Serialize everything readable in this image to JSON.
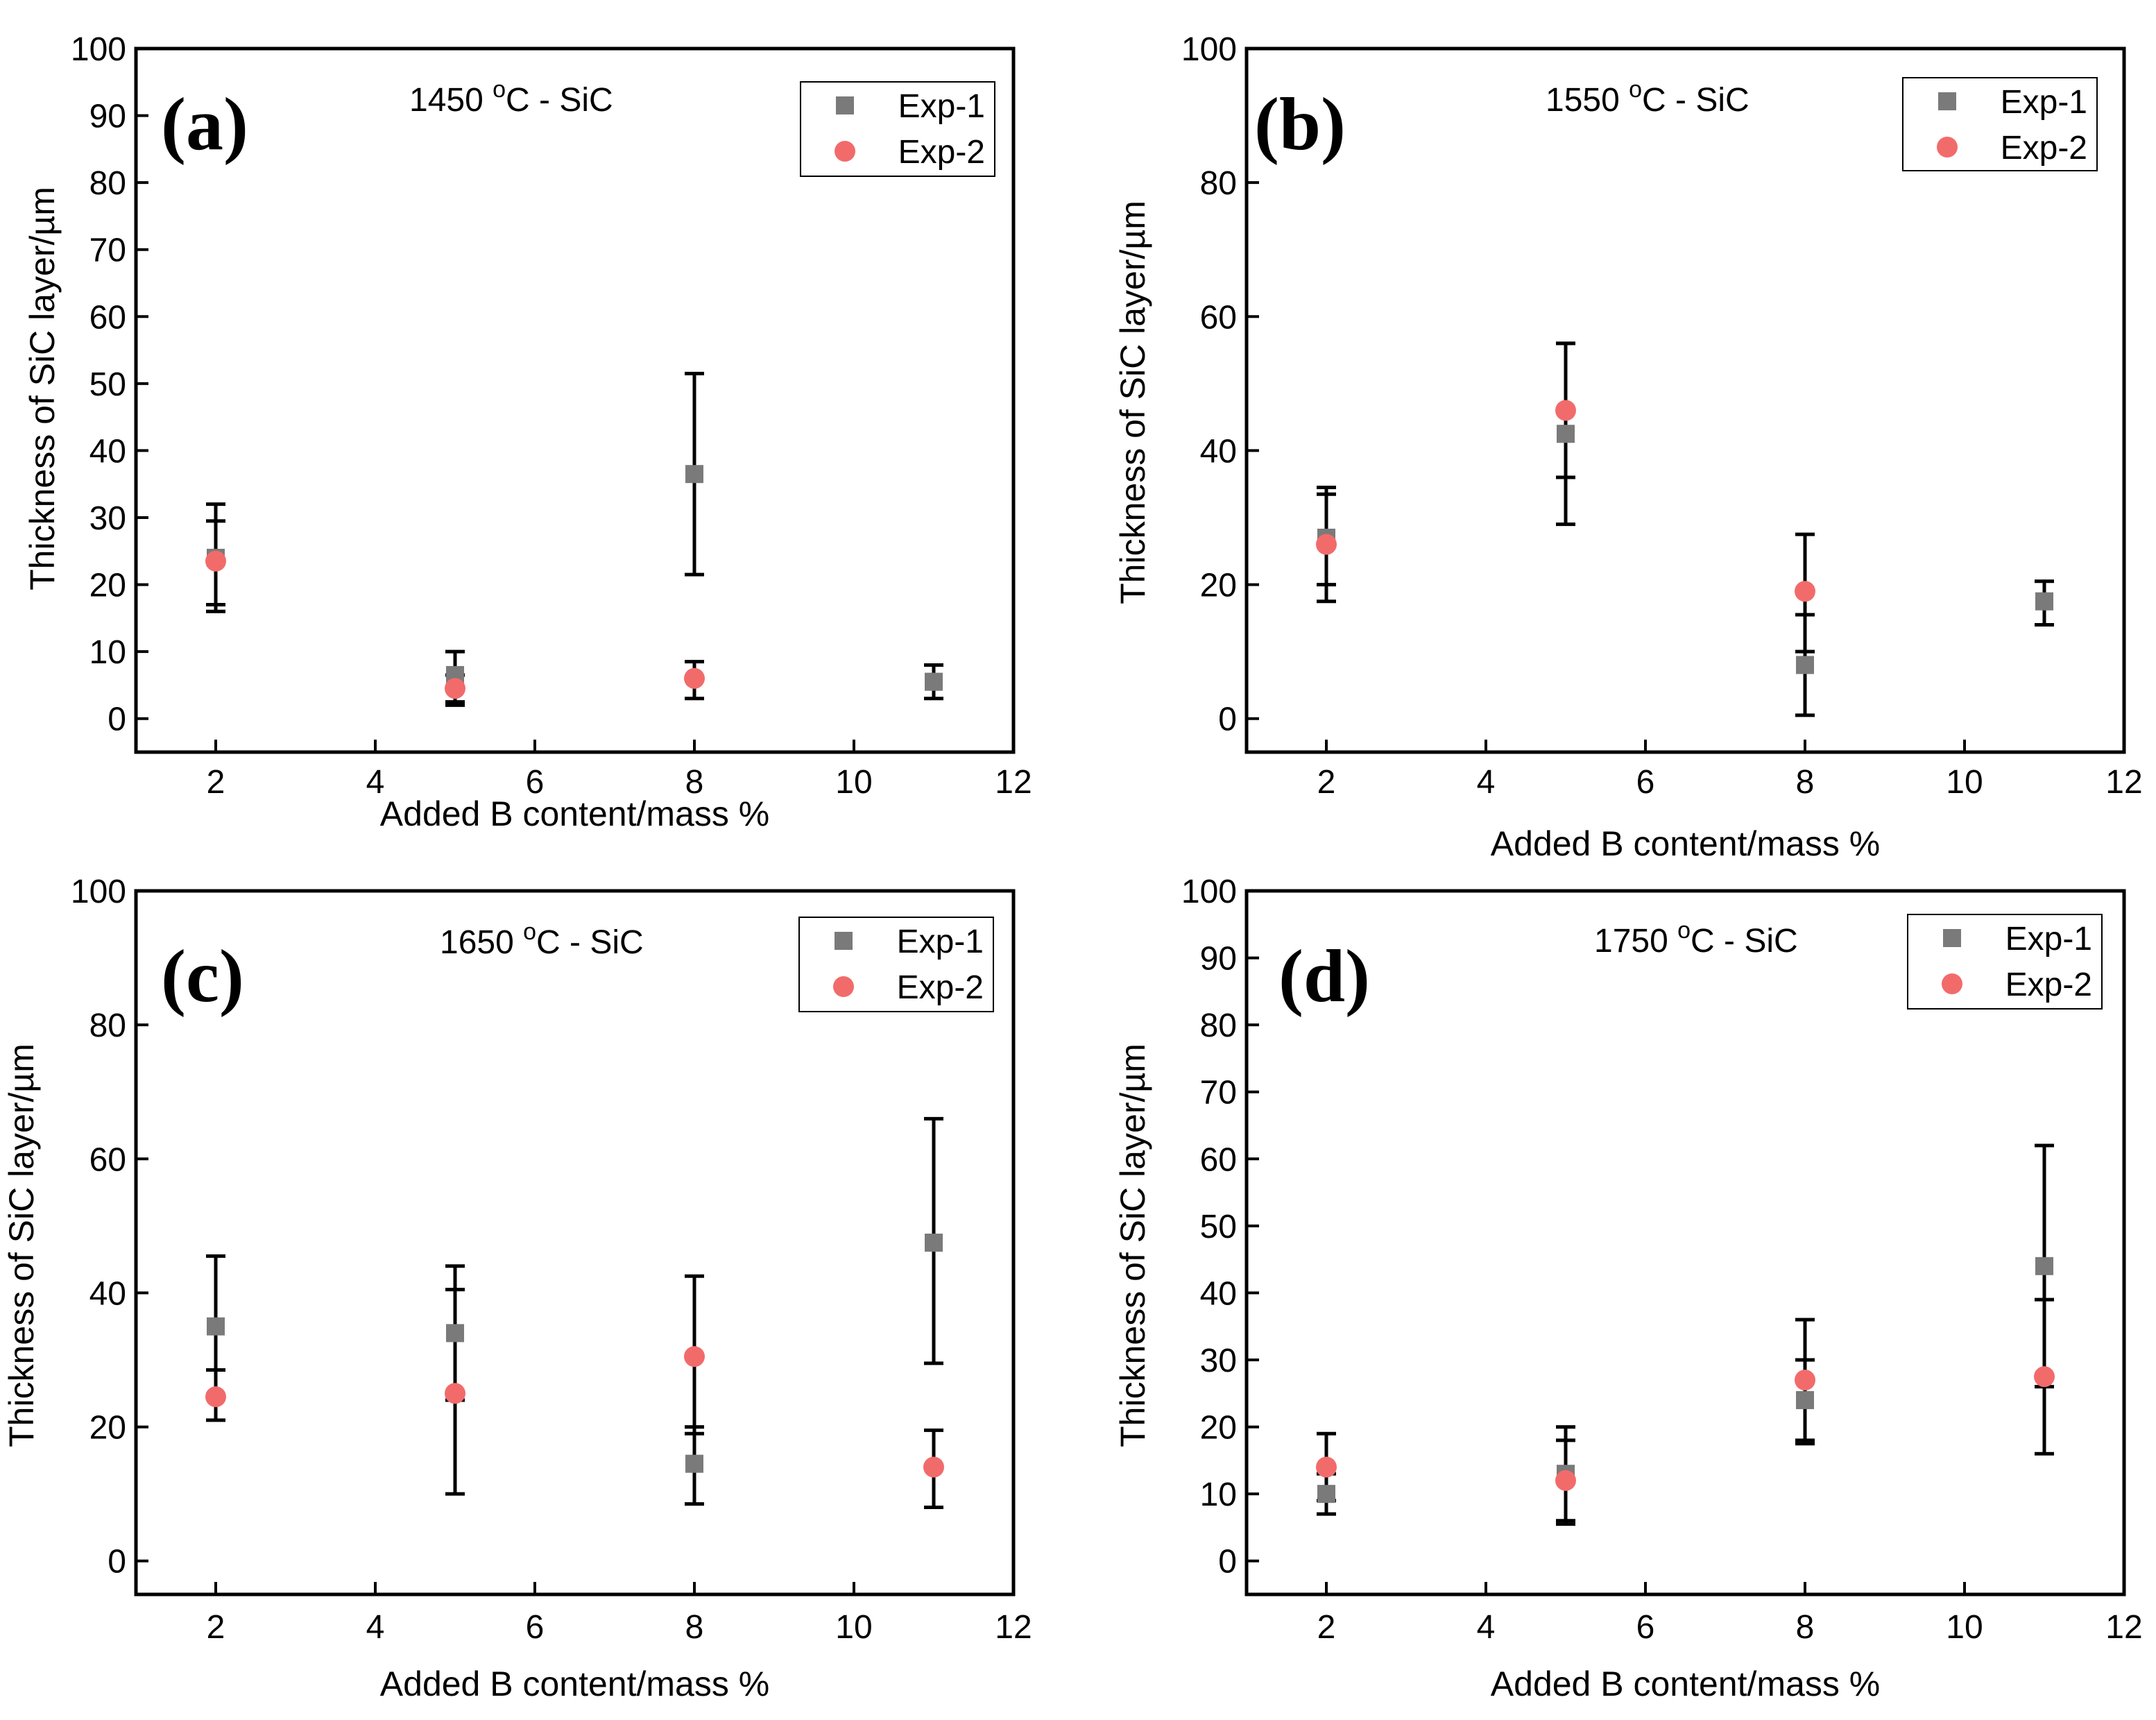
{
  "figure": {
    "series_colors": {
      "Exp-1": "#7a7a7a",
      "Exp-2": "#f26b6b"
    },
    "error_bar_color": "#000000"
  },
  "chart_data": [
    {
      "type": "scatter",
      "panel_label": "(a)",
      "annotation": {
        "temp": "1450",
        "sup": "o",
        "rest": "C - SiC"
      },
      "xlabel": "Added B content/mass %",
      "ylabel": "Thickness of SiC layer/µm",
      "xlim": [
        1,
        12
      ],
      "ylim": [
        -5,
        100
      ],
      "xticks": [
        2,
        4,
        6,
        8,
        10,
        12
      ],
      "yticks": [
        0,
        10,
        20,
        30,
        40,
        50,
        60,
        70,
        80,
        90,
        100
      ],
      "legend_position": "top-right",
      "series": [
        {
          "name": "Exp-1",
          "marker": "square",
          "points": [
            {
              "x": 2,
              "y": 24,
              "lo": 16,
              "hi": 32
            },
            {
              "x": 5,
              "y": 6.5,
              "lo": 2.5,
              "hi": 10
            },
            {
              "x": 8,
              "y": 36.5,
              "lo": 21.5,
              "hi": 51.5
            },
            {
              "x": 11,
              "y": 5.5,
              "lo": 3,
              "hi": 8
            }
          ]
        },
        {
          "name": "Exp-2",
          "marker": "circle",
          "points": [
            {
              "x": 2,
              "y": 23.5,
              "lo": 17,
              "hi": 29.5
            },
            {
              "x": 5,
              "y": 4.5,
              "lo": 2,
              "hi": 6.5
            },
            {
              "x": 8,
              "y": 6,
              "lo": 3,
              "hi": 8.5
            }
          ]
        }
      ]
    },
    {
      "type": "scatter",
      "panel_label": "(b)",
      "annotation": {
        "temp": "1550",
        "sup": "o",
        "rest": "C - SiC"
      },
      "xlabel": "Added B content/mass %",
      "ylabel": "Thickness of SiC layer/µm",
      "xlim": [
        1,
        12
      ],
      "ylim": [
        -5,
        100
      ],
      "xticks": [
        2,
        4,
        6,
        8,
        10,
        12
      ],
      "yticks": [
        0,
        20,
        40,
        60,
        80,
        100
      ],
      "legend_position": "top-right",
      "series": [
        {
          "name": "Exp-1",
          "marker": "square",
          "points": [
            {
              "x": 2,
              "y": 27,
              "lo": 20,
              "hi": 34.5
            },
            {
              "x": 5,
              "y": 42.5,
              "lo": 29,
              "hi": 56
            },
            {
              "x": 8,
              "y": 8,
              "lo": 0.5,
              "hi": 15.5
            },
            {
              "x": 11,
              "y": 17.5,
              "lo": 14,
              "hi": 20.5
            }
          ]
        },
        {
          "name": "Exp-2",
          "marker": "circle",
          "points": [
            {
              "x": 2,
              "y": 26,
              "lo": 17.5,
              "hi": 33.5
            },
            {
              "x": 5,
              "y": 46,
              "lo": 36,
              "hi": 56
            },
            {
              "x": 8,
              "y": 19,
              "lo": 10,
              "hi": 27.5
            }
          ]
        }
      ]
    },
    {
      "type": "scatter",
      "panel_label": "(c)",
      "annotation": {
        "temp": "1650",
        "sup": "o",
        "rest": "C - SiC"
      },
      "xlabel": "Added B content/mass %",
      "ylabel": "Thickness of SiC layer/µm",
      "xlim": [
        1,
        12
      ],
      "ylim": [
        -5,
        100
      ],
      "xticks": [
        2,
        4,
        6,
        8,
        10,
        12
      ],
      "yticks": [
        0,
        20,
        40,
        60,
        80,
        100
      ],
      "legend_position": "top-right",
      "series": [
        {
          "name": "Exp-1",
          "marker": "square",
          "points": [
            {
              "x": 2,
              "y": 35,
              "lo": 24.5,
              "hi": 45.5
            },
            {
              "x": 5,
              "y": 34,
              "lo": 24,
              "hi": 44
            },
            {
              "x": 8,
              "y": 14.5,
              "lo": 8.5,
              "hi": 20
            },
            {
              "x": 11,
              "y": 47.5,
              "lo": 29.5,
              "hi": 66
            }
          ]
        },
        {
          "name": "Exp-2",
          "marker": "circle",
          "points": [
            {
              "x": 2,
              "y": 24.5,
              "lo": 21,
              "hi": 28.5
            },
            {
              "x": 5,
              "y": 25,
              "lo": 10,
              "hi": 40.5
            },
            {
              "x": 8,
              "y": 30.5,
              "lo": 19,
              "hi": 42.5
            },
            {
              "x": 11,
              "y": 14,
              "lo": 8,
              "hi": 19.5
            }
          ]
        }
      ]
    },
    {
      "type": "scatter",
      "panel_label": "(d)",
      "annotation": {
        "temp": "1750",
        "sup": "o",
        "rest": "C - SiC"
      },
      "xlabel": "Added B content/mass %",
      "ylabel": "Thickness of SiC layer/µm",
      "xlim": [
        1,
        12
      ],
      "ylim": [
        -5,
        100
      ],
      "xticks": [
        2,
        4,
        6,
        8,
        10,
        12
      ],
      "yticks": [
        0,
        10,
        20,
        30,
        40,
        50,
        60,
        70,
        80,
        90,
        100
      ],
      "legend_position": "top-right",
      "series": [
        {
          "name": "Exp-1",
          "marker": "square",
          "points": [
            {
              "x": 2,
              "y": 10,
              "lo": 7,
              "hi": 13
            },
            {
              "x": 5,
              "y": 13,
              "lo": 6,
              "hi": 20
            },
            {
              "x": 8,
              "y": 24,
              "lo": 18,
              "hi": 30
            },
            {
              "x": 11,
              "y": 44,
              "lo": 26,
              "hi": 62
            }
          ]
        },
        {
          "name": "Exp-2",
          "marker": "circle",
          "points": [
            {
              "x": 2,
              "y": 14,
              "lo": 9,
              "hi": 19
            },
            {
              "x": 5,
              "y": 12,
              "lo": 5.5,
              "hi": 18
            },
            {
              "x": 8,
              "y": 27,
              "lo": 17.5,
              "hi": 36
            },
            {
              "x": 11,
              "y": 27.5,
              "lo": 16,
              "hi": 39
            }
          ]
        }
      ]
    }
  ]
}
